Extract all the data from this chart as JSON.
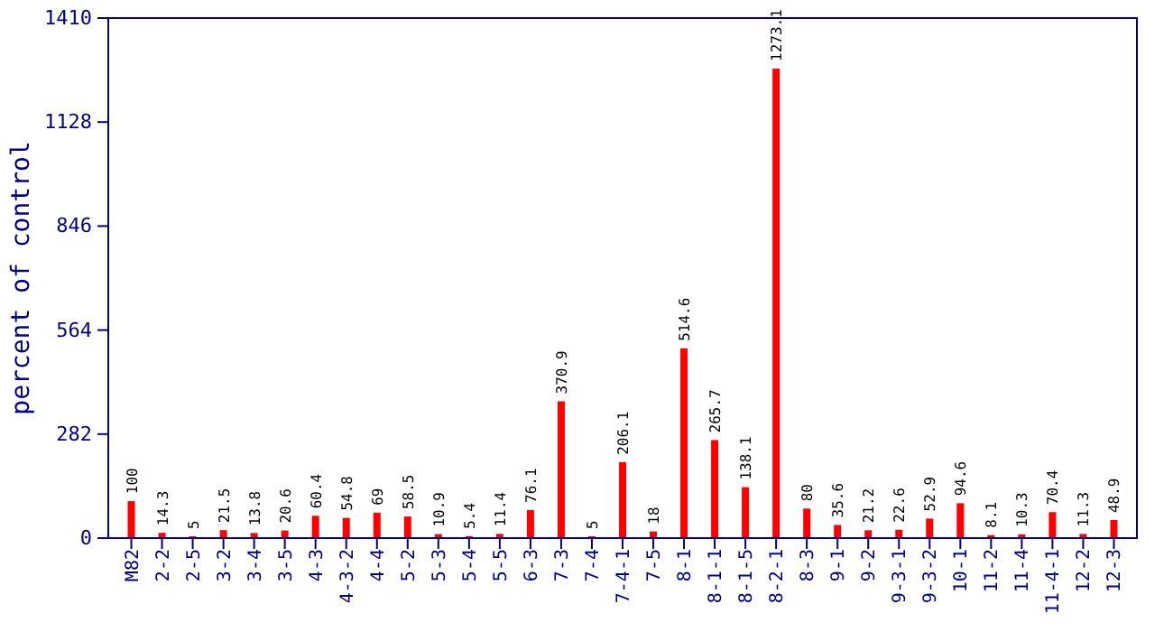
{
  "chart_data": {
    "type": "bar",
    "ylabel": "percent of control",
    "categories": [
      "M82",
      "2-2",
      "2-5",
      "3-2",
      "3-4",
      "3-5",
      "4-3",
      "4-3-2",
      "4-4",
      "5-2",
      "5-3",
      "5-4",
      "5-5",
      "6-3",
      "7-3",
      "7-4",
      "7-4-1",
      "7-5",
      "8-1",
      "8-1-1",
      "8-1-5",
      "8-2-1",
      "8-3",
      "9-1",
      "9-2",
      "9-3-1",
      "9-3-2",
      "10-1",
      "11-2",
      "11-4",
      "11-4-1",
      "12-2",
      "12-3"
    ],
    "values": [
      100,
      14.3,
      5,
      21.5,
      13.8,
      20.6,
      60.4,
      54.8,
      69,
      58.5,
      10.9,
      5.4,
      11.4,
      76.1,
      370.9,
      5,
      206.1,
      18,
      514.6,
      265.7,
      138.1,
      1273.1,
      80,
      35.6,
      21.2,
      22.6,
      52.9,
      94.6,
      8.1,
      10.3,
      70.4,
      11.3,
      48.9
    ],
    "color": "#ff0000",
    "ylim": [
      0,
      1410
    ],
    "yticks": [
      0,
      282,
      564,
      846,
      1128,
      1410
    ],
    "data_labels": true
  }
}
